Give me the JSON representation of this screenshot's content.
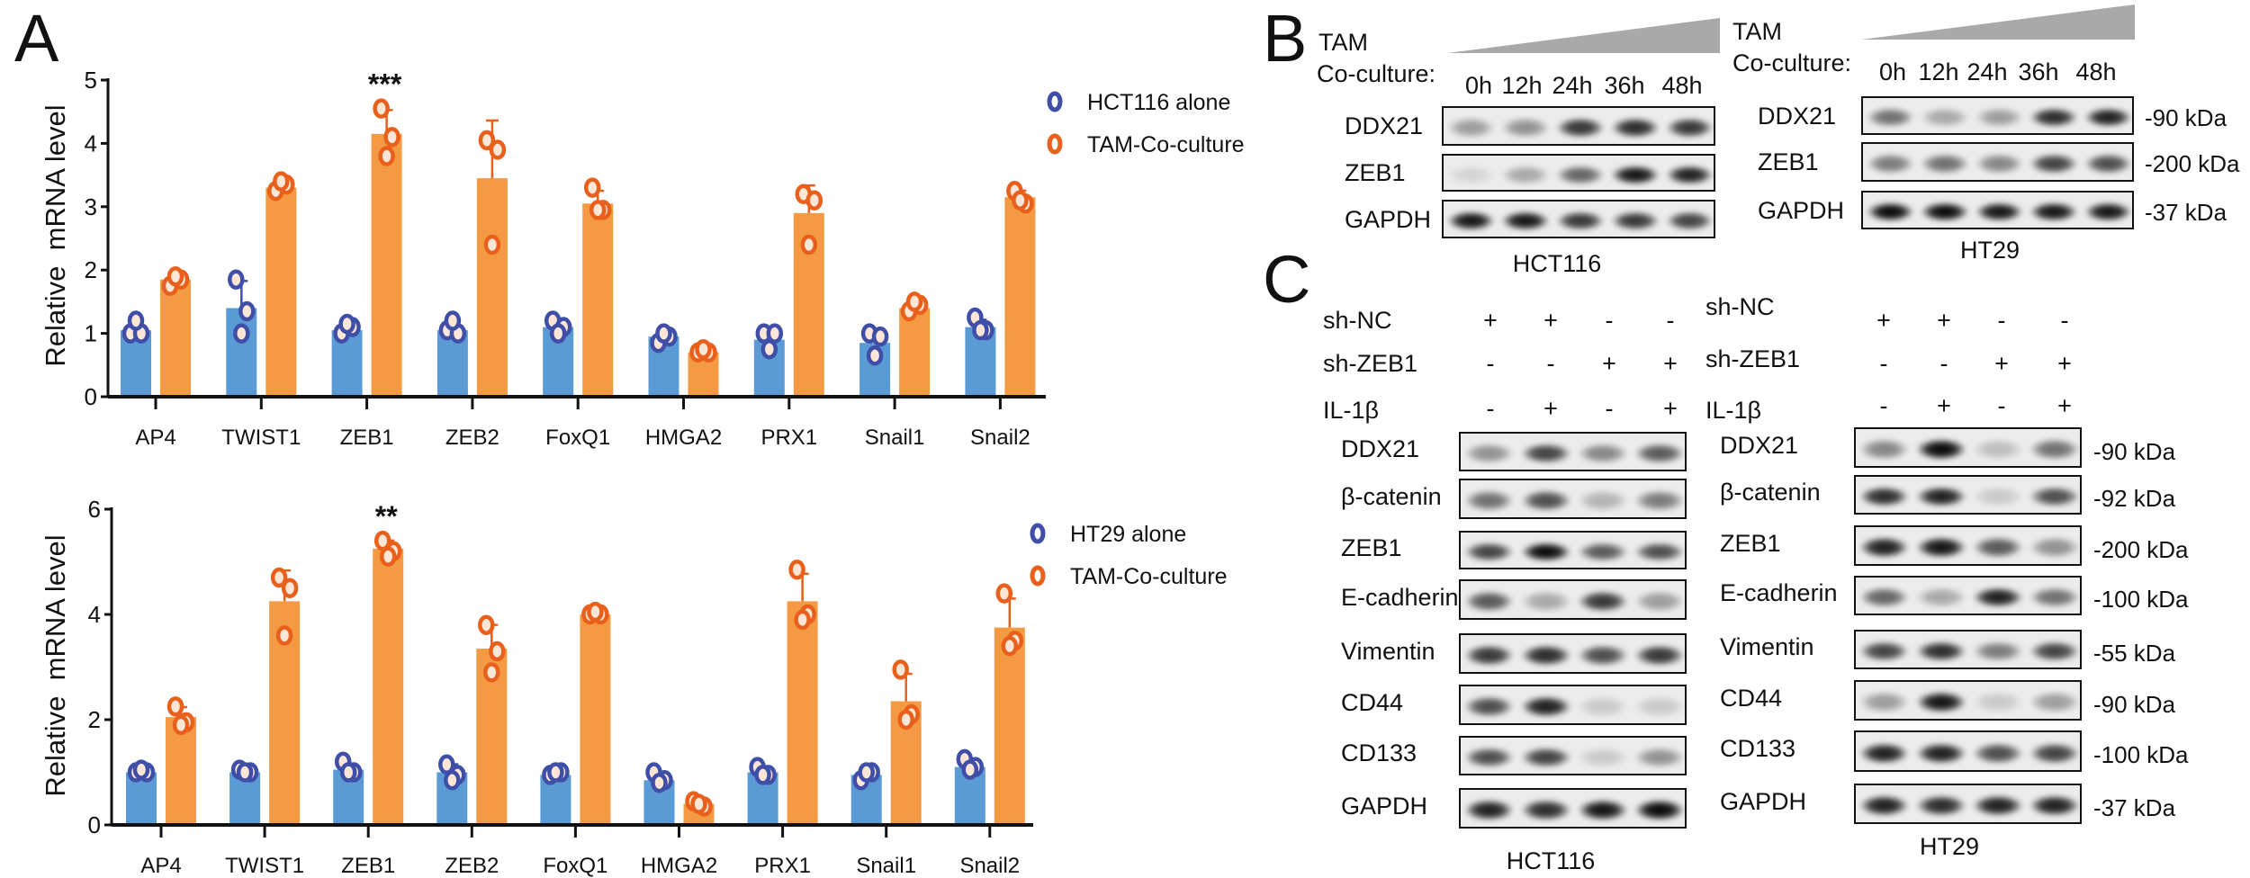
{
  "panels": {
    "a": "A",
    "b": "B",
    "c": "C"
  },
  "chart_data": [
    {
      "type": "bar",
      "title": "",
      "xlabel": "",
      "ylabel": "Relative  mRNA level",
      "ylim": [
        0,
        5
      ],
      "yticks": [
        "0",
        "1",
        "2",
        "3",
        "4",
        "5"
      ],
      "categories": [
        "AP4",
        "TWIST1",
        "ZEB1",
        "ZEB2",
        "FoxQ1",
        "HMGA2",
        "PRX1",
        "Snail1",
        "Snail2"
      ],
      "legend_position": "top-right",
      "series": [
        {
          "name": "HCT116 alone",
          "bar_color": "#5b9bd5",
          "point_color": "#3f4fa8",
          "values": [
            1.05,
            1.4,
            1.05,
            1.05,
            1.1,
            0.95,
            0.9,
            0.85,
            1.1
          ],
          "points": [
            [
              1.0,
              1.0,
              1.2
            ],
            [
              1.85,
              1.35,
              1.0
            ],
            [
              1.0,
              1.1,
              1.15
            ],
            [
              1.05,
              1.0,
              1.2
            ],
            [
              1.2,
              1.1,
              1.0
            ],
            [
              0.85,
              0.95,
              1.0
            ],
            [
              1.0,
              1.0,
              0.75
            ],
            [
              1.0,
              0.95,
              0.65
            ],
            [
              1.25,
              1.05,
              1.05
            ]
          ]
        },
        {
          "name": "TAM-Co-culture",
          "bar_color": "#f49a42",
          "point_color": "#e8601c",
          "values": [
            1.85,
            3.3,
            4.15,
            3.45,
            3.05,
            0.7,
            2.9,
            1.4,
            3.15
          ],
          "points": [
            [
              1.75,
              1.85,
              1.9
            ],
            [
              3.25,
              3.35,
              3.4
            ],
            [
              4.55,
              4.1,
              3.8
            ],
            [
              4.05,
              3.9,
              2.4
            ],
            [
              3.3,
              2.95,
              2.95
            ],
            [
              0.7,
              0.7,
              0.75
            ],
            [
              3.2,
              3.1,
              2.4
            ],
            [
              1.35,
              1.45,
              1.5
            ],
            [
              3.25,
              3.05,
              3.1
            ]
          ]
        }
      ],
      "annotations": [
        {
          "category": "ZEB1",
          "series": "TAM-Co-culture",
          "text": "***"
        }
      ]
    },
    {
      "type": "bar",
      "title": "",
      "xlabel": "",
      "ylabel": "Relative  mRNA level",
      "ylim": [
        0,
        6
      ],
      "yticks": [
        "0",
        "2",
        "4",
        "6"
      ],
      "categories": [
        "AP4",
        "TWIST1",
        "ZEB1",
        "ZEB2",
        "FoxQ1",
        "HMGA2",
        "PRX1",
        "Snail1",
        "Snail2"
      ],
      "legend_position": "top-right",
      "series": [
        {
          "name": "HT29 alone",
          "bar_color": "#5b9bd5",
          "point_color": "#3f4fa8",
          "values": [
            1.0,
            1.0,
            1.05,
            1.0,
            0.95,
            0.85,
            1.0,
            0.95,
            1.1
          ],
          "points": [
            [
              1.0,
              1.0,
              1.05
            ],
            [
              1.05,
              1.0,
              1.0
            ],
            [
              1.2,
              1.0,
              1.0
            ],
            [
              1.15,
              0.95,
              0.85
            ],
            [
              0.95,
              1.0,
              1.0
            ],
            [
              1.0,
              0.85,
              0.8
            ],
            [
              1.1,
              0.95,
              0.95
            ],
            [
              0.85,
              1.0,
              1.0
            ],
            [
              1.25,
              1.1,
              1.05
            ]
          ]
        },
        {
          "name": "TAM-Co-culture",
          "bar_color": "#f49a42",
          "point_color": "#e8601c",
          "values": [
            2.05,
            4.25,
            5.25,
            3.35,
            4.0,
            0.4,
            4.25,
            2.35,
            3.75
          ],
          "points": [
            [
              2.25,
              1.95,
              1.9
            ],
            [
              4.7,
              4.5,
              3.6
            ],
            [
              5.4,
              5.2,
              5.1
            ],
            [
              3.8,
              3.3,
              2.9
            ],
            [
              4.0,
              4.0,
              4.05
            ],
            [
              0.45,
              0.35,
              0.4
            ],
            [
              4.85,
              4.0,
              3.9
            ],
            [
              2.95,
              2.1,
              2.0
            ],
            [
              4.4,
              3.5,
              3.4
            ]
          ]
        }
      ],
      "annotations": [
        {
          "category": "ZEB1",
          "series": "TAM-Co-culture",
          "text": "**"
        }
      ]
    }
  ],
  "panel_b": {
    "hct116": {
      "treatment_label_1": "TAM",
      "treatment_label_2": "Co-culture:",
      "timepoints": [
        "0h",
        "12h",
        "24h",
        "36h",
        "48h"
      ],
      "cell_line": "HCT116",
      "rows": [
        {
          "protein": "DDX21",
          "intensity": [
            0.35,
            0.4,
            0.8,
            0.85,
            0.8
          ]
        },
        {
          "protein": "ZEB1",
          "intensity": [
            0.1,
            0.3,
            0.6,
            0.95,
            0.9
          ]
        },
        {
          "protein": "GAPDH",
          "intensity": [
            0.95,
            0.95,
            0.8,
            0.8,
            0.75
          ]
        }
      ]
    },
    "ht29": {
      "treatment_label_1": "TAM",
      "treatment_label_2": "Co-culture:",
      "timepoints": [
        "0h",
        "12h",
        "24h",
        "36h",
        "48h"
      ],
      "cell_line": "HT29",
      "rows": [
        {
          "protein": "DDX21",
          "mw": "-90 kDa",
          "intensity": [
            0.55,
            0.3,
            0.35,
            0.85,
            0.9
          ]
        },
        {
          "protein": "ZEB1",
          "mw": "-200 kDa",
          "intensity": [
            0.5,
            0.55,
            0.45,
            0.75,
            0.7
          ]
        },
        {
          "protein": "GAPDH",
          "mw": "-37 kDa",
          "intensity": [
            1,
            1,
            0.95,
            0.95,
            0.95
          ]
        }
      ]
    }
  },
  "panel_c": {
    "conditions": [
      {
        "label": "sh-NC",
        "signs": [
          "+",
          "+",
          "-",
          "-"
        ]
      },
      {
        "label": "sh-ZEB1",
        "signs": [
          "-",
          "-",
          "+",
          "+"
        ]
      },
      {
        "label": "IL-1β",
        "signs": [
          "-",
          "+",
          "-",
          "+"
        ]
      }
    ],
    "hct116": {
      "cell_line": "HCT116",
      "rows": [
        {
          "protein": "DDX21",
          "intensity": [
            0.4,
            0.75,
            0.45,
            0.65
          ]
        },
        {
          "protein": "β-catenin",
          "intensity": [
            0.55,
            0.7,
            0.25,
            0.5
          ]
        },
        {
          "protein": "ZEB1",
          "intensity": [
            0.75,
            1,
            0.65,
            0.7
          ]
        },
        {
          "protein": "E-cadherin",
          "intensity": [
            0.65,
            0.3,
            0.8,
            0.35
          ]
        },
        {
          "protein": "Vimentin",
          "intensity": [
            0.8,
            0.85,
            0.7,
            0.8
          ]
        },
        {
          "protein": "CD44",
          "intensity": [
            0.7,
            0.9,
            0.15,
            0.15
          ]
        },
        {
          "protein": "CD133",
          "intensity": [
            0.7,
            0.75,
            0.15,
            0.4
          ]
        },
        {
          "protein": "GAPDH",
          "intensity": [
            0.9,
            0.85,
            0.95,
            1
          ]
        }
      ]
    },
    "ht29": {
      "cell_line": "HT29",
      "rows": [
        {
          "protein": "DDX21",
          "mw": "-90 kDa",
          "intensity": [
            0.45,
            1,
            0.2,
            0.55
          ]
        },
        {
          "protein": "β-catenin",
          "mw": "-92 kDa",
          "intensity": [
            0.85,
            0.9,
            0.15,
            0.7
          ]
        },
        {
          "protein": "ZEB1",
          "mw": "-200 kDa",
          "intensity": [
            0.9,
            0.95,
            0.65,
            0.4
          ]
        },
        {
          "protein": "E-cadherin",
          "mw": "-100 kDa",
          "intensity": [
            0.6,
            0.3,
            0.9,
            0.55
          ]
        },
        {
          "protein": "Vimentin",
          "mw": "-55 kDa",
          "intensity": [
            0.75,
            0.85,
            0.5,
            0.75
          ]
        },
        {
          "protein": "CD44",
          "mw": "-90 kDa",
          "intensity": [
            0.35,
            0.95,
            0.15,
            0.35
          ]
        },
        {
          "protein": "CD133",
          "mw": "-100 kDa",
          "intensity": [
            0.9,
            0.9,
            0.7,
            0.75
          ]
        },
        {
          "protein": "GAPDH",
          "mw": "-37 kDa",
          "intensity": [
            0.9,
            0.85,
            0.9,
            0.9
          ]
        }
      ]
    }
  }
}
